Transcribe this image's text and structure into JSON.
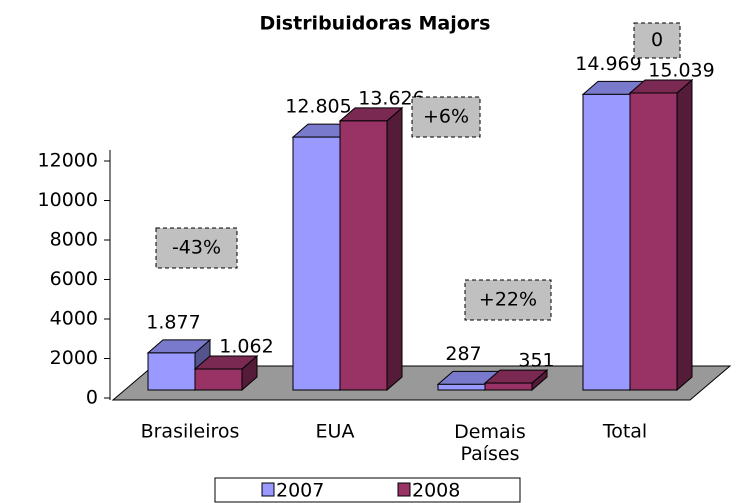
{
  "chart_data": {
    "type": "bar3d",
    "title": "Distribuidoras Majors",
    "categories": [
      "Brasileiros",
      "EUA",
      "Demais Países",
      "Total"
    ],
    "series": [
      {
        "name": "2007",
        "color": "#9999ff",
        "values": [
          1877,
          12805,
          287,
          14969
        ],
        "value_labels": [
          "1.877",
          "12.805",
          "287",
          "14.969"
        ]
      },
      {
        "name": "2008",
        "color": "#993366",
        "values": [
          1062,
          13626,
          351,
          15039
        ],
        "value_labels": [
          "1.062",
          "13.626",
          "351",
          "15.039"
        ]
      }
    ],
    "annotations": [
      "-43%",
      "+6%",
      "+22%",
      "0"
    ],
    "ylim": [
      0,
      12000
    ],
    "yticks": [
      0,
      2000,
      4000,
      6000,
      8000,
      10000,
      12000
    ],
    "legend": "bottom"
  }
}
